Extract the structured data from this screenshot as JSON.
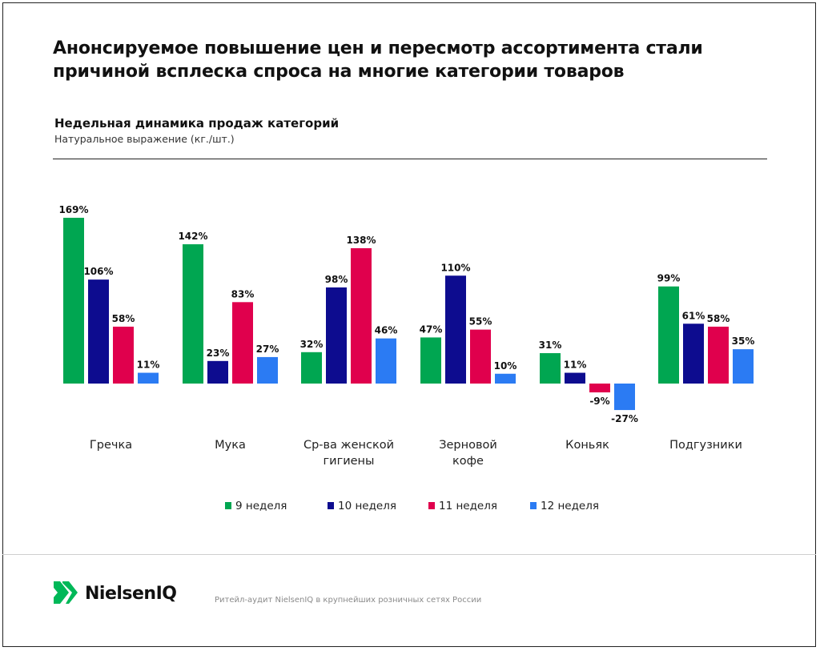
{
  "header": {
    "title": "Анонсируемое повышение цен и пересмотр ассортимента стали причиной всплеска спроса на многие категории товаров"
  },
  "chart_data": {
    "type": "bar",
    "title": "Недельная динамика продаж категорий",
    "subtitle": "Натуральное выражение (кг./шт.)",
    "categories": [
      "Гречка",
      "Мука",
      "Ср-ва женской гигиены",
      "Зерновой кофе",
      "Коньяк",
      "Подгузники"
    ],
    "category_lines": [
      [
        "Гречка"
      ],
      [
        "Мука"
      ],
      [
        "Ср-ва женской",
        "гигиены"
      ],
      [
        "Зерновой",
        "кофе"
      ],
      [
        "Коньяк"
      ],
      [
        "Подгузники"
      ]
    ],
    "series": [
      {
        "name": "9 неделя",
        "color": "#00a651",
        "values": [
          169,
          142,
          32,
          47,
          31,
          99
        ]
      },
      {
        "name": "10 неделя",
        "color": "#0d0c8f",
        "values": [
          106,
          23,
          98,
          110,
          11,
          61
        ]
      },
      {
        "name": "11 неделя",
        "color": "#e0004d",
        "values": [
          58,
          83,
          138,
          55,
          -9,
          58
        ]
      },
      {
        "name": "12 неделя",
        "color": "#2b7bf3",
        "values": [
          11,
          27,
          46,
          10,
          -27,
          35
        ]
      }
    ],
    "value_suffix": "%",
    "legend_position": "bottom",
    "grid": false,
    "ylim": [
      -30,
      170
    ]
  },
  "footer": {
    "logo": "NielsenIQ",
    "source": "Ритейл-аудит NielsenIQ в крупнейших розничных сетях России"
  }
}
